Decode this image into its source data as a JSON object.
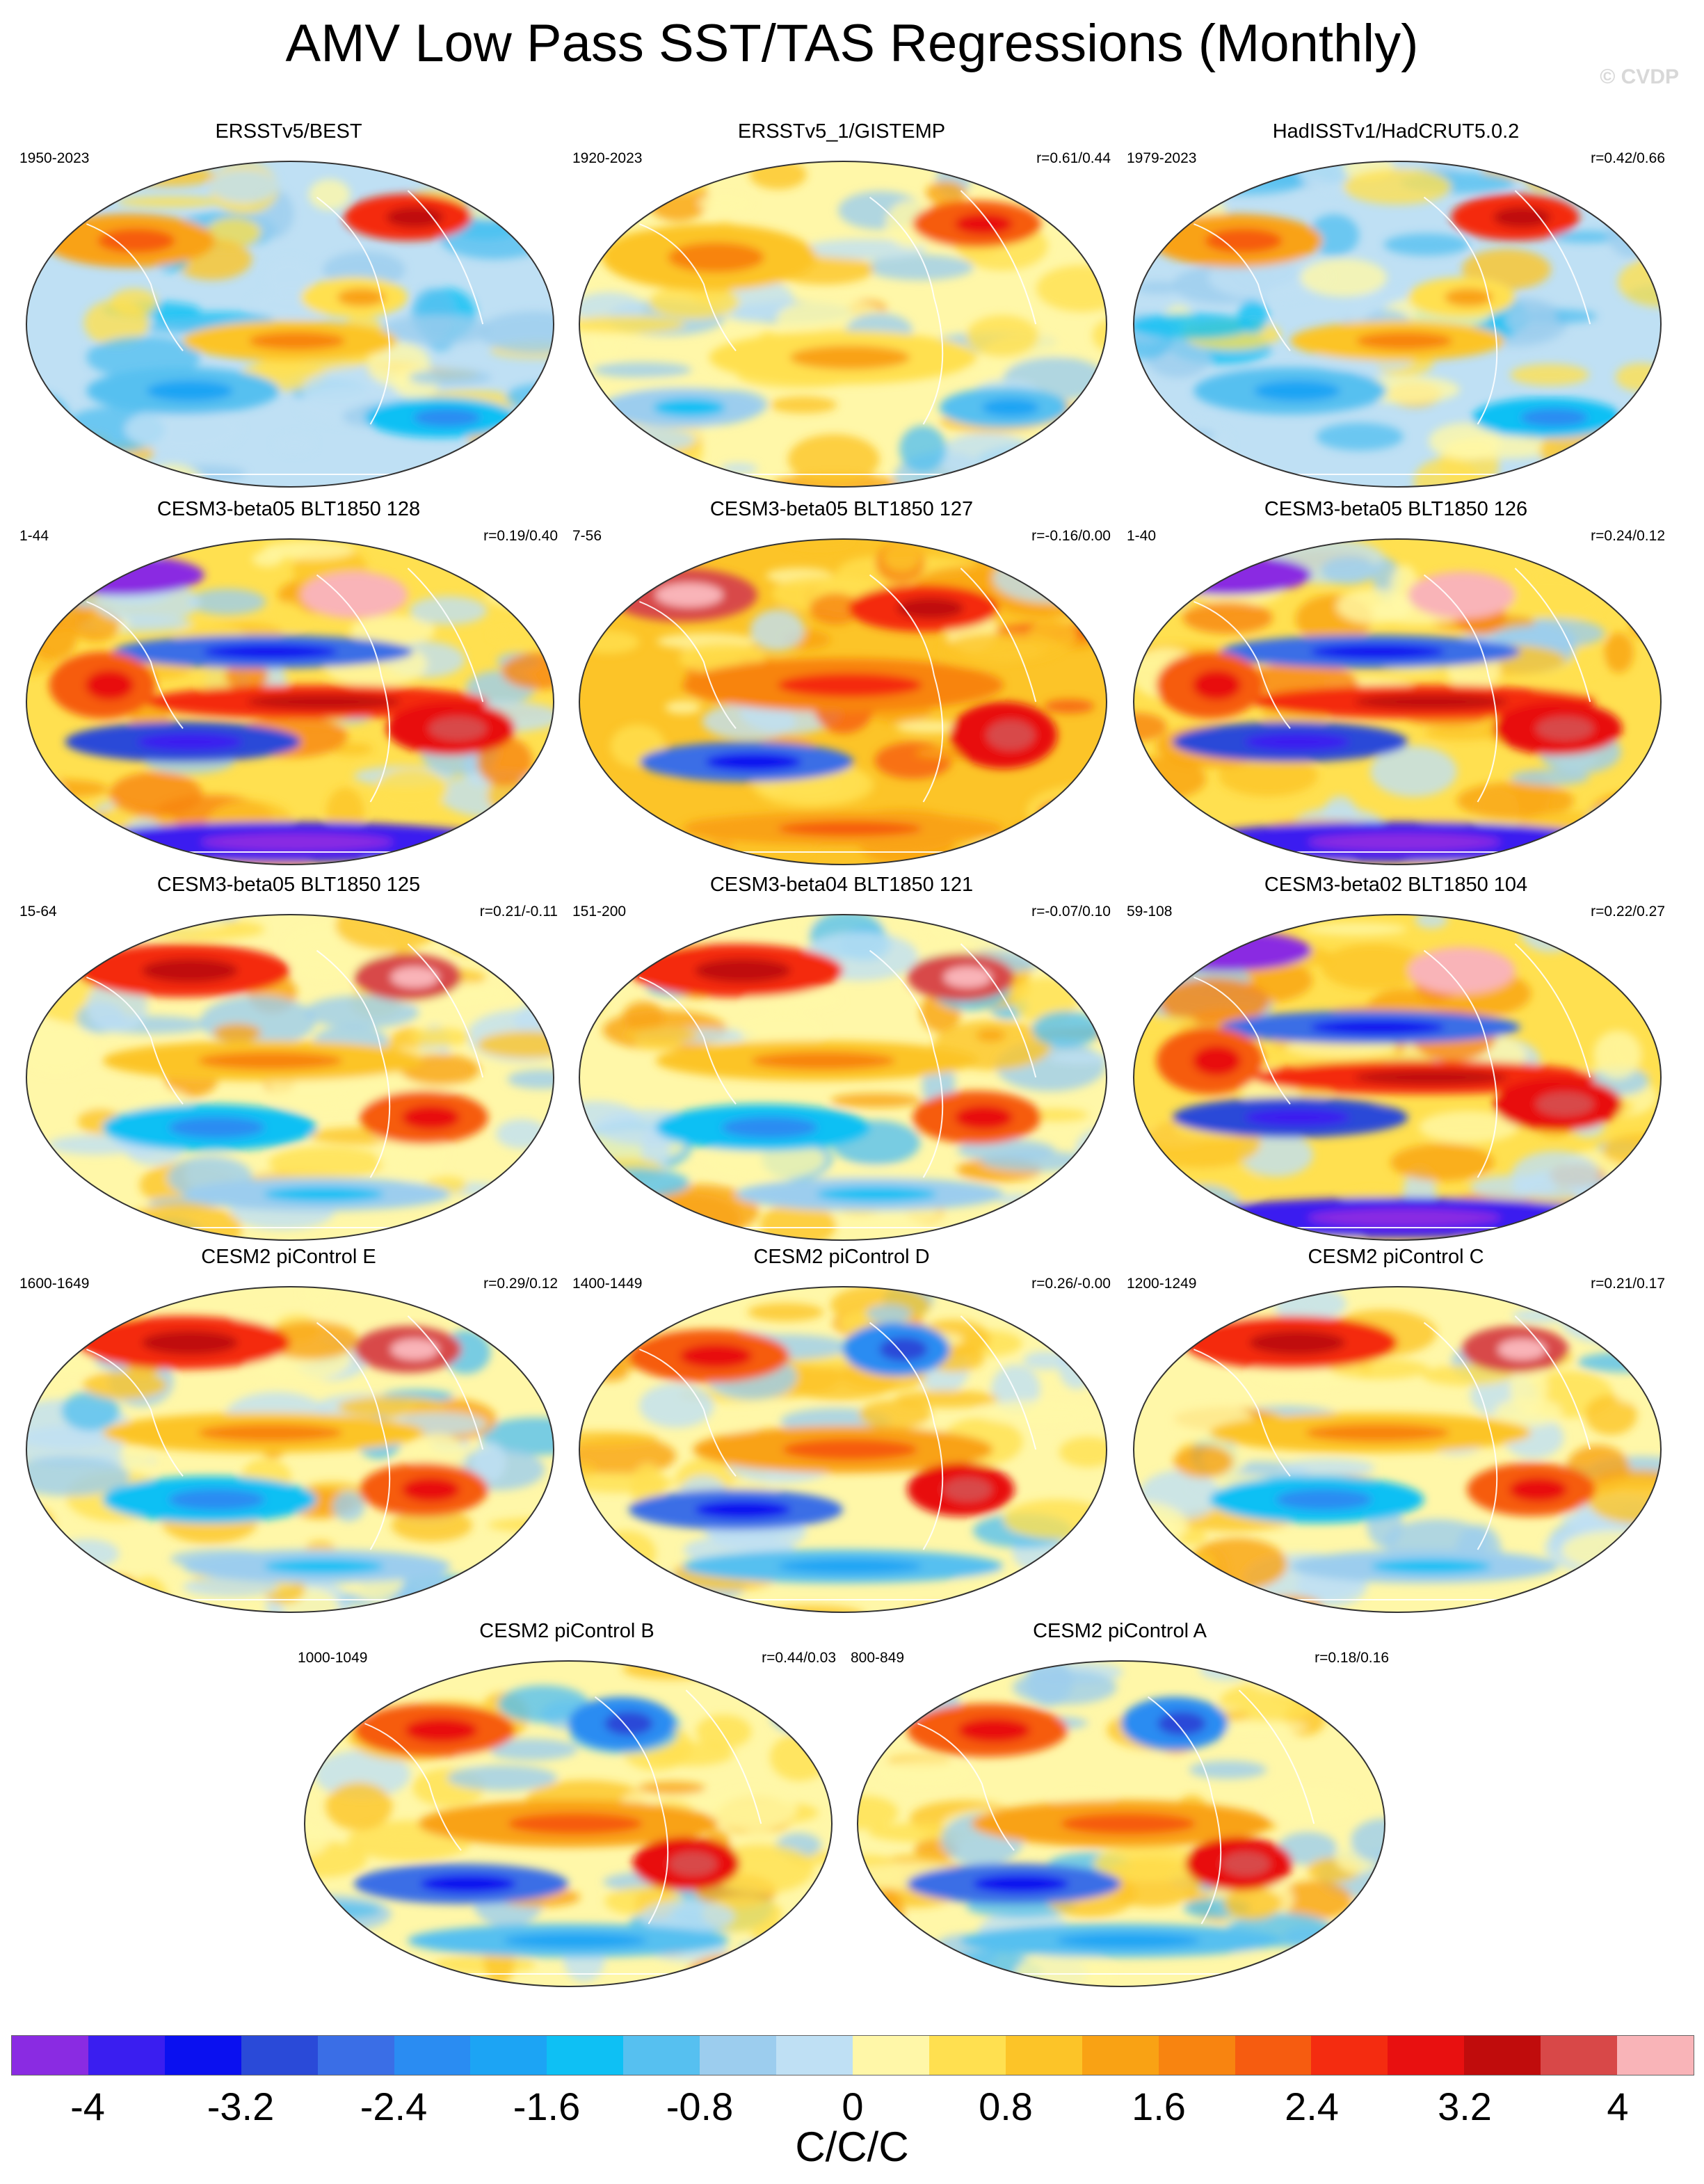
{
  "title": "AMV Low Pass SST/TAS Regressions (Monthly)",
  "watermark": "© CVDP",
  "panels": [
    {
      "title": "ERSSTv5/BEST",
      "period": "1950-2023",
      "corr": "",
      "pattern": "obs"
    },
    {
      "title": "ERSSTv5_1/GISTEMP",
      "period": "1920-2023",
      "corr": "r=0.61/0.44",
      "pattern": "obs-warm"
    },
    {
      "title": "HadISSTv1/HadCRUT5.0.2",
      "period": "1979-2023",
      "corr": "r=0.42/0.66",
      "pattern": "obs"
    },
    {
      "title": "CESM3-beta05 BLT1850 128",
      "period": "1-44",
      "corr": "r=0.19/0.40",
      "pattern": "strong-mixed"
    },
    {
      "title": "CESM3-beta05 BLT1850 127",
      "period": "7-56",
      "corr": "r=-0.16/0.00",
      "pattern": "strong-warm"
    },
    {
      "title": "CESM3-beta05 BLT1850 126",
      "period": "1-40",
      "corr": "r=0.24/0.12",
      "pattern": "strong-mixed"
    },
    {
      "title": "CESM3-beta05 BLT1850 125",
      "period": "15-64",
      "corr": "r=0.21/-0.11",
      "pattern": "warm-north"
    },
    {
      "title": "CESM3-beta04 BLT1850 121",
      "period": "151-200",
      "corr": "r=-0.07/0.10",
      "pattern": "warm-north"
    },
    {
      "title": "CESM3-beta02 BLT1850 104",
      "period": "59-108",
      "corr": "r=0.22/0.27",
      "pattern": "strong-mixed"
    },
    {
      "title": "CESM2 piControl E",
      "period": "1600-1649",
      "corr": "r=0.29/0.12",
      "pattern": "warm-north"
    },
    {
      "title": "CESM2 piControl D",
      "period": "1400-1449",
      "corr": "r=0.26/-0.00",
      "pattern": "mixed"
    },
    {
      "title": "CESM2 piControl C",
      "period": "1200-1249",
      "corr": "r=0.21/0.17",
      "pattern": "warm-north"
    },
    {
      "title": "CESM2 piControl B",
      "period": "1000-1049",
      "corr": "r=0.44/0.03",
      "pattern": "mixed"
    },
    {
      "title": "CESM2 piControl A",
      "period": "800-849",
      "corr": "r=0.18/0.16",
      "pattern": "mixed"
    }
  ],
  "colorbar": {
    "colors": [
      "#8a2be2",
      "#3a1ef0",
      "#0a10f0",
      "#2a4ad8",
      "#3a6ee6",
      "#2a8cf2",
      "#1ca4f4",
      "#0ec0f4",
      "#56c0f0",
      "#9ccdee",
      "#bfe0f4",
      "#fff7a8",
      "#ffe050",
      "#fcc428",
      "#f9a214",
      "#f88410",
      "#f65c10",
      "#f42c10",
      "#e81010",
      "#c00c0c",
      "#d84848",
      "#f9b4b8"
    ],
    "tick_labels": [
      "-4",
      "-3.2",
      "-2.4",
      "-1.6",
      "-0.8",
      "0",
      "0.8",
      "1.6",
      "2.4",
      "3.2",
      "4"
    ],
    "units": "C/C/C"
  }
}
